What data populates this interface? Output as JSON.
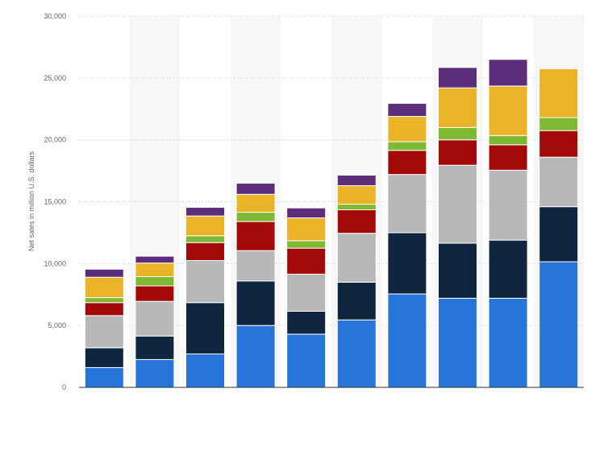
{
  "chart_data": {
    "type": "bar",
    "stacked": true,
    "title": "",
    "xlabel": "",
    "ylabel": "Net sales in million U.S. dollars",
    "ylim": [
      0,
      30000
    ],
    "yticks": [
      0,
      5000,
      10000,
      15000,
      20000,
      25000,
      30000
    ],
    "ytick_labels": [
      "0",
      "5,000",
      "10,000",
      "15,000",
      "20,000",
      "25,000",
      "30,000"
    ],
    "grid": true,
    "legend": "none",
    "categories": [
      "",
      "",
      "",
      "",
      "",
      "",
      "",
      "",
      "",
      ""
    ],
    "series": [
      {
        "color": "#2775d9",
        "values": [
          1600,
          2250,
          2700,
          5000,
          4300,
          5450,
          7550,
          7200,
          7200,
          10150
        ]
      },
      {
        "color": "#10253f",
        "values": [
          1600,
          1900,
          4150,
          3600,
          1850,
          3050,
          4950,
          4450,
          4700,
          4450
        ]
      },
      {
        "color": "#b8b8b8",
        "values": [
          2600,
          2800,
          3400,
          2450,
          3000,
          3950,
          4700,
          6300,
          5650,
          4000
        ]
      },
      {
        "color": "#a30909",
        "values": [
          1050,
          1250,
          1450,
          2350,
          2100,
          1900,
          1950,
          2050,
          2050,
          2150
        ]
      },
      {
        "color": "#7fb833",
        "values": [
          400,
          750,
          550,
          750,
          600,
          450,
          700,
          1000,
          750,
          1050
        ]
      },
      {
        "color": "#ebb327",
        "values": [
          1650,
          1100,
          1600,
          1450,
          1850,
          1500,
          2050,
          3200,
          4000,
          3950
        ]
      },
      {
        "color": "#5b2d7a",
        "values": [
          650,
          550,
          700,
          900,
          800,
          850,
          1050,
          1650,
          2150,
          0
        ]
      }
    ],
    "colors": {
      "grid": "#e0e0e0",
      "axis": "#333333",
      "band": "#f7f7f7"
    }
  }
}
